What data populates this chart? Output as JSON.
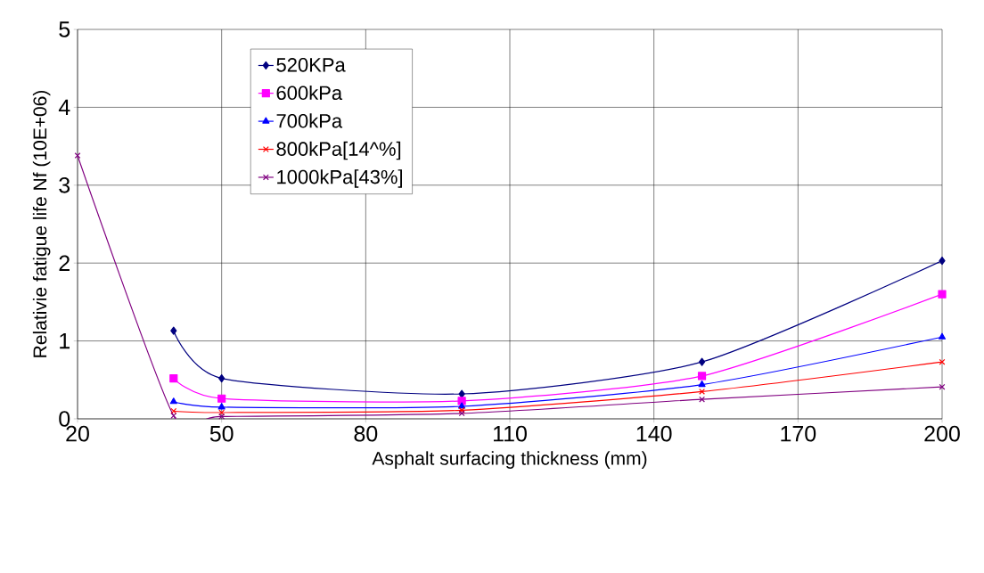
{
  "chart_data": {
    "type": "line",
    "xlabel": "Asphalt surfacing thickness (mm)",
    "ylabel": "Relativie fatigue life Nf (10E+06)",
    "x": [
      20,
      40,
      50,
      100,
      150,
      200
    ],
    "series": [
      {
        "name": "520KPa",
        "color": "#000080",
        "marker": "diamond",
        "values": [
          null,
          1.13,
          0.52,
          0.32,
          0.73,
          2.03
        ]
      },
      {
        "name": "600kPa",
        "color": "#ff00ff",
        "marker": "square",
        "values": [
          null,
          0.52,
          0.26,
          0.23,
          0.55,
          1.6
        ]
      },
      {
        "name": "700kPa",
        "color": "#0000ff",
        "marker": "triangle",
        "values": [
          null,
          0.22,
          0.15,
          0.16,
          0.44,
          1.05
        ]
      },
      {
        "name": "800kPa[14^%]",
        "color": "#ff0000",
        "marker": "cross",
        "values": [
          null,
          0.1,
          0.08,
          0.11,
          0.35,
          0.73
        ]
      },
      {
        "name": "1000kPa[43%]",
        "color": "#800080",
        "marker": "cross",
        "values": [
          3.38,
          0.04,
          0.03,
          0.07,
          0.25,
          0.41
        ]
      }
    ],
    "xlim": [
      20,
      200
    ],
    "xticks": [
      20,
      50,
      80,
      110,
      140,
      170,
      200
    ],
    "ylim": [
      0,
      5
    ],
    "yticks": [
      0,
      1,
      2,
      3,
      4,
      5
    ],
    "grid": true,
    "legend": "top left",
    "line_style": "solid"
  }
}
